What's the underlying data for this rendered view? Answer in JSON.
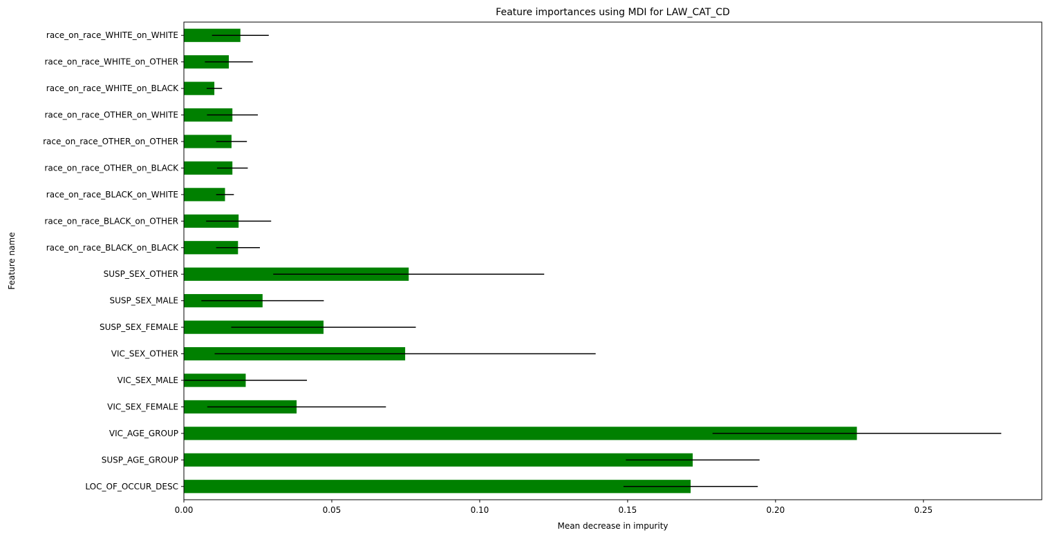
{
  "chart_data": {
    "type": "bar",
    "orientation": "horizontal",
    "title": "Feature importances using MDI for LAW_CAT_CD",
    "xlabel": "Mean decrease in impurity",
    "ylabel": "Feature name",
    "xlim": [
      0,
      0.29
    ],
    "xticks": [
      0.0,
      0.05,
      0.1,
      0.15,
      0.2,
      0.25
    ],
    "xtick_labels": [
      "0.00",
      "0.05",
      "0.10",
      "0.15",
      "0.20",
      "0.25"
    ],
    "bar_color": "#008000",
    "errorbar_color": "#000000",
    "grid": false,
    "categories": [
      "race_on_race_WHITE_on_WHITE",
      "race_on_race_WHITE_on_OTHER",
      "race_on_race_WHITE_on_BLACK",
      "race_on_race_OTHER_on_WHITE",
      "race_on_race_OTHER_on_OTHER",
      "race_on_race_OTHER_on_BLACK",
      "race_on_race_BLACK_on_WHITE",
      "race_on_race_BLACK_on_OTHER",
      "race_on_race_BLACK_on_BLACK",
      "SUSP_SEX_OTHER",
      "SUSP_SEX_MALE",
      "SUSP_SEX_FEMALE",
      "VIC_SEX_OTHER",
      "VIC_SEX_MALE",
      "VIC_SEX_FEMALE",
      "VIC_AGE_GROUP",
      "SUSP_AGE_GROUP",
      "LOC_OF_OCCUR_DESC"
    ],
    "values": [
      0.0191,
      0.0152,
      0.0103,
      0.0164,
      0.0161,
      0.0164,
      0.0139,
      0.0185,
      0.0183,
      0.076,
      0.0266,
      0.0472,
      0.0748,
      0.0209,
      0.0381,
      0.2275,
      0.172,
      0.1713
    ],
    "errors": [
      0.0096,
      0.0081,
      0.0026,
      0.0086,
      0.0052,
      0.0052,
      0.003,
      0.011,
      0.0074,
      0.0458,
      0.0207,
      0.0312,
      0.0644,
      0.0207,
      0.0302,
      0.0488,
      0.0226,
      0.0227
    ]
  }
}
